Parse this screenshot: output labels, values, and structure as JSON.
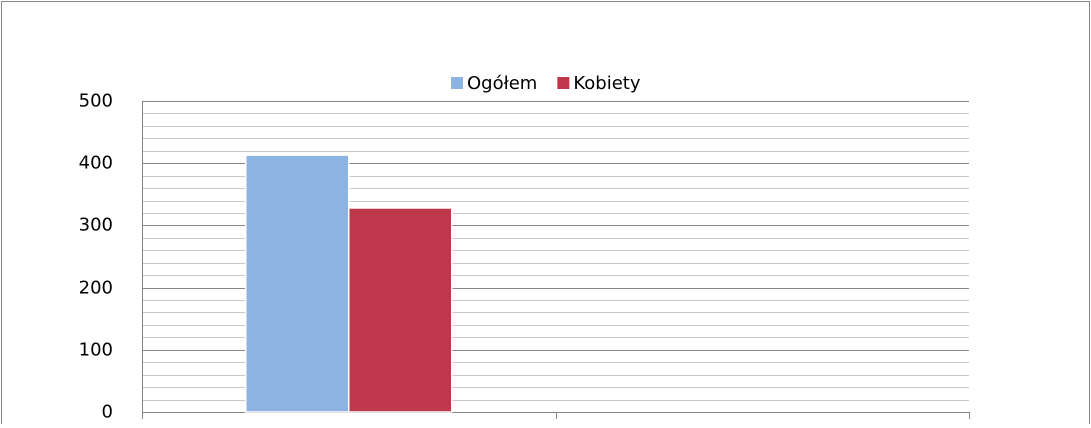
{
  "chart_data": {
    "type": "bar",
    "categories": [
      null,
      null
    ],
    "series": [
      {
        "name": "Ogółem",
        "color": "#8db3e2",
        "values": [
          413,
          null
        ]
      },
      {
        "name": "Kobiety",
        "color": "#be374b",
        "values": [
          328,
          null
        ]
      }
    ],
    "ylim": [
      0,
      500
    ],
    "yticks": [
      0,
      100,
      200,
      300,
      400,
      500
    ],
    "minor_yticks": [
      20,
      40,
      60,
      80,
      120,
      140,
      160,
      180,
      220,
      240,
      260,
      280,
      320,
      340,
      360,
      380,
      420,
      440,
      460,
      480
    ],
    "grid": true,
    "legend": "top"
  }
}
